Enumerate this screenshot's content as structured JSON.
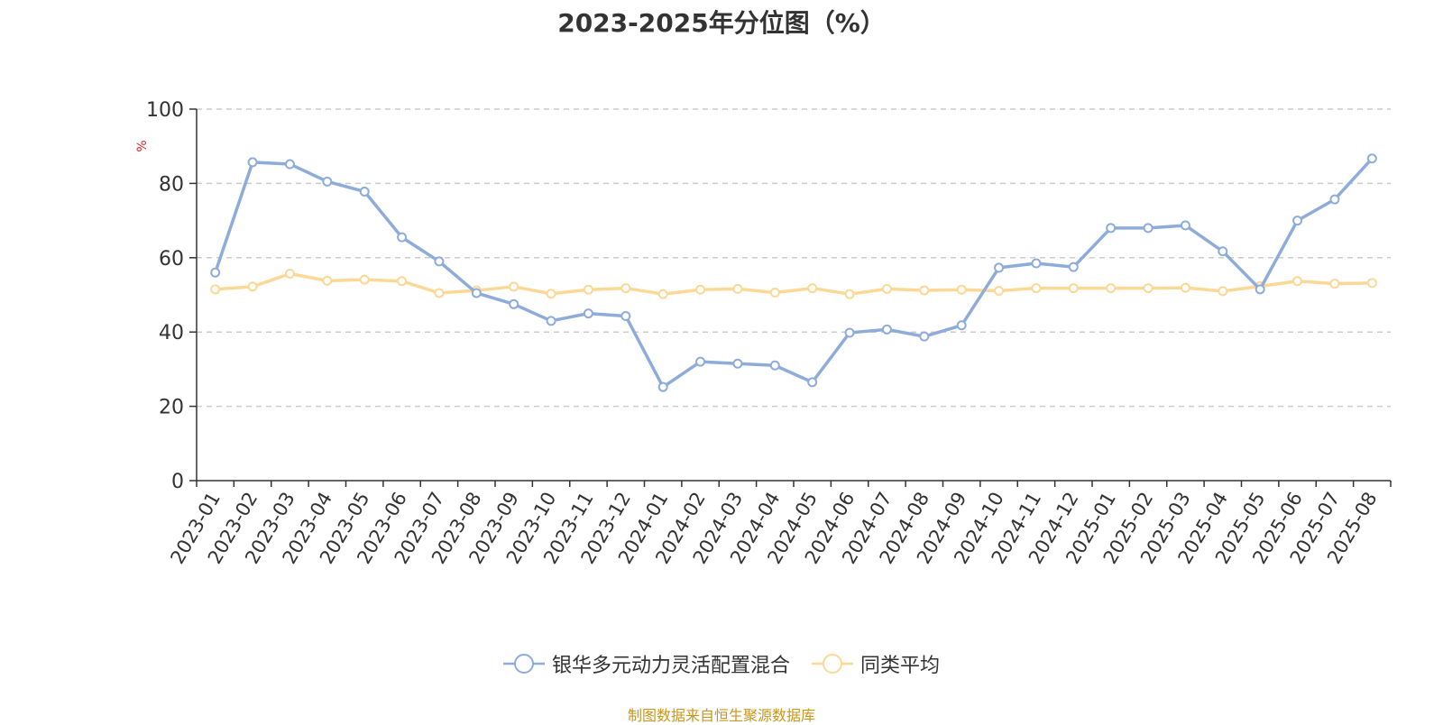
{
  "chart_data": {
    "type": "line",
    "title": "2023-2025年分位图（%）",
    "ylabel": "%",
    "xlabel": "",
    "ylim": [
      0,
      100
    ],
    "yticks": [
      0,
      20,
      40,
      60,
      80,
      100
    ],
    "grid": true,
    "legend_position": "bottom",
    "categories": [
      "2023-01",
      "2023-02",
      "2023-03",
      "2023-04",
      "2023-05",
      "2023-06",
      "2023-07",
      "2023-08",
      "2023-09",
      "2023-10",
      "2023-11",
      "2023-12",
      "2024-01",
      "2024-02",
      "2024-03",
      "2024-04",
      "2024-05",
      "2024-06",
      "2024-07",
      "2024-08",
      "2024-09",
      "2024-10",
      "2024-11",
      "2024-12",
      "2025-01",
      "2025-02",
      "2025-03",
      "2025-04",
      "2025-05",
      "2025-06",
      "2025-07",
      "2025-08"
    ],
    "series": [
      {
        "name": "银华多元动力灵活配置混合",
        "color": "#8eacd9",
        "values": [
          56,
          85.7,
          85.2,
          80.5,
          77.8,
          65.5,
          59,
          50.5,
          47.5,
          43,
          45,
          44.3,
          25.2,
          32,
          31.5,
          31,
          26.5,
          39.8,
          40.7,
          38.8,
          41.8,
          57.3,
          58.5,
          57.5,
          68,
          68,
          68.7,
          61.7,
          51.5,
          70,
          75.7,
          86.7
        ]
      },
      {
        "name": "同类平均",
        "color": "#fcd896",
        "values": [
          51.5,
          52.2,
          55.7,
          53.8,
          54.1,
          53.7,
          50.5,
          51.2,
          52.2,
          50.3,
          51.4,
          51.8,
          50.2,
          51.4,
          51.6,
          50.6,
          51.8,
          50.2,
          51.6,
          51.2,
          51.4,
          51.1,
          51.8,
          51.8,
          51.8,
          51.8,
          51.9,
          51,
          52.3,
          53.7,
          53,
          53.2
        ]
      }
    ]
  },
  "source": "制图数据来自恒生聚源数据库"
}
